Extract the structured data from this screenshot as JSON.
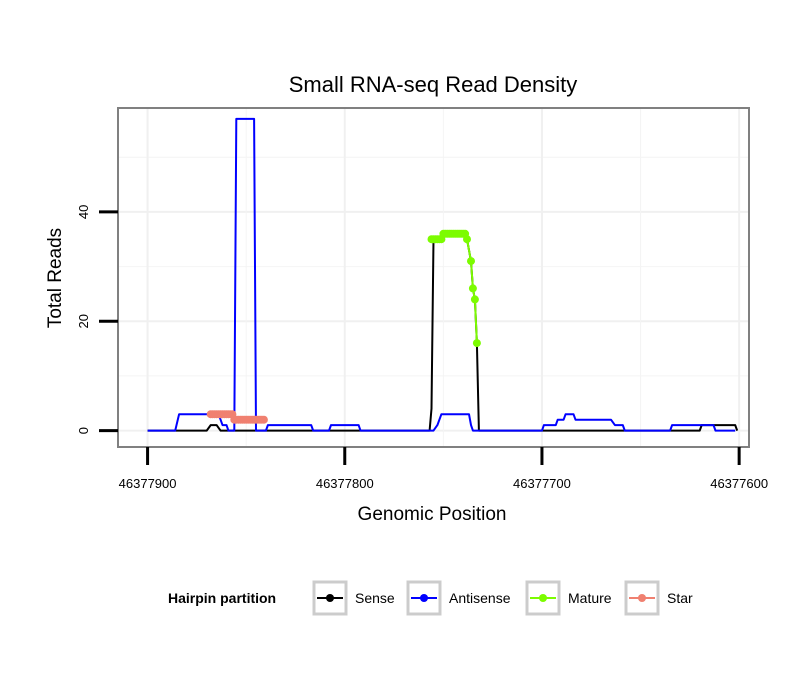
{
  "chart_data": {
    "type": "line",
    "title": "Small RNA-seq Read Density",
    "xlabel": "Genomic Position",
    "ylabel": "Total Reads",
    "xlim": [
      46377915,
      46377595
    ],
    "ylim": [
      -3,
      59
    ],
    "x_reversed": true,
    "x_ticks": [
      46377900,
      46377800,
      46377700,
      46377600
    ],
    "x_tick_labels": [
      "46377900",
      "46377800",
      "46377700",
      "46377600"
    ],
    "y_ticks": [
      0,
      20,
      40
    ],
    "y_tick_labels": [
      "0",
      "20",
      "40"
    ],
    "grid": true,
    "legend": {
      "title": "Hairpin partition",
      "position": "bottom",
      "entries": [
        "Sense",
        "Antisense",
        "Mature",
        "Star"
      ]
    },
    "series": [
      {
        "name": "Sense",
        "color": "#000000",
        "style": "line",
        "points": [
          [
            46377900,
            0
          ],
          [
            46377870,
            0
          ],
          [
            46377868,
            1
          ],
          [
            46377865,
            1
          ],
          [
            46377863,
            0
          ],
          [
            46377840,
            0
          ],
          [
            46377830,
            0
          ],
          [
            46377800,
            0
          ],
          [
            46377770,
            0
          ],
          [
            46377757,
            0
          ],
          [
            46377756,
            4
          ],
          [
            46377755,
            35
          ],
          [
            46377745,
            36
          ],
          [
            46377740,
            36
          ],
          [
            46377738,
            35
          ],
          [
            46377736,
            31
          ],
          [
            46377735,
            26
          ],
          [
            46377734,
            24
          ],
          [
            46377733,
            16
          ],
          [
            46377732,
            0
          ],
          [
            46377700,
            0
          ],
          [
            46377650,
            0
          ],
          [
            46377620,
            0
          ],
          [
            46377619,
            1
          ],
          [
            46377610,
            1
          ],
          [
            46377602,
            1
          ],
          [
            46377601,
            0
          ]
        ]
      },
      {
        "name": "Antisense",
        "color": "#0000ff",
        "style": "line",
        "points": [
          [
            46377900,
            0
          ],
          [
            46377886,
            0
          ],
          [
            46377884,
            3
          ],
          [
            46377864,
            3
          ],
          [
            46377862,
            1
          ],
          [
            46377860,
            1
          ],
          [
            46377859,
            0
          ],
          [
            46377856,
            0
          ],
          [
            46377855,
            57
          ],
          [
            46377846,
            57
          ],
          [
            46377845,
            0
          ],
          [
            46377840,
            0
          ],
          [
            46377839,
            1
          ],
          [
            46377817,
            1
          ],
          [
            46377816,
            0
          ],
          [
            46377808,
            0
          ],
          [
            46377807,
            1
          ],
          [
            46377793,
            1
          ],
          [
            46377792,
            0
          ],
          [
            46377755,
            0
          ],
          [
            46377753,
            1
          ],
          [
            46377751,
            3
          ],
          [
            46377737,
            3
          ],
          [
            46377736,
            1
          ],
          [
            46377735,
            0
          ],
          [
            46377700,
            0
          ],
          [
            46377699,
            1
          ],
          [
            46377693,
            1
          ],
          [
            46377692,
            2
          ],
          [
            46377689,
            2
          ],
          [
            46377688,
            3
          ],
          [
            46377684,
            3
          ],
          [
            46377683,
            2
          ],
          [
            46377665,
            2
          ],
          [
            46377663,
            1
          ],
          [
            46377659,
            1
          ],
          [
            46377658,
            0
          ],
          [
            46377635,
            0
          ],
          [
            46377634,
            1
          ],
          [
            46377613,
            1
          ],
          [
            46377612,
            0
          ],
          [
            46377602,
            0
          ]
        ]
      },
      {
        "name": "Mature",
        "color": "#7cfc00",
        "style": "line+points",
        "points": [
          [
            46377756,
            35
          ],
          [
            46377755,
            35
          ],
          [
            46377754,
            35
          ],
          [
            46377753,
            35
          ],
          [
            46377752,
            35
          ],
          [
            46377751,
            35
          ],
          [
            46377750,
            36
          ],
          [
            46377749,
            36
          ],
          [
            46377748,
            36
          ],
          [
            46377747,
            36
          ],
          [
            46377746,
            36
          ],
          [
            46377745,
            36
          ],
          [
            46377744,
            36
          ],
          [
            46377743,
            36
          ],
          [
            46377742,
            36
          ],
          [
            46377741,
            36
          ],
          [
            46377740,
            36
          ],
          [
            46377739,
            36
          ],
          [
            46377738,
            35
          ],
          [
            46377736,
            31
          ],
          [
            46377735,
            26
          ],
          [
            46377734,
            24
          ],
          [
            46377733,
            16
          ]
        ]
      },
      {
        "name": "Star",
        "color": "#f08070",
        "style": "line+points",
        "points": [
          [
            46377868,
            3
          ],
          [
            46377867,
            3
          ],
          [
            46377866,
            3
          ],
          [
            46377865,
            3
          ],
          [
            46377864,
            3
          ],
          [
            46377863,
            3
          ],
          [
            46377862,
            3
          ],
          [
            46377861,
            3
          ],
          [
            46377860,
            3
          ],
          [
            46377859,
            3
          ],
          [
            46377858,
            3
          ],
          [
            46377857,
            3
          ],
          [
            46377856,
            2
          ],
          [
            46377855,
            2
          ],
          [
            46377854,
            2
          ],
          [
            46377853,
            2
          ],
          [
            46377852,
            2
          ],
          [
            46377851,
            2
          ],
          [
            46377850,
            2
          ],
          [
            46377849,
            2
          ],
          [
            46377848,
            2
          ],
          [
            46377847,
            2
          ],
          [
            46377846,
            2
          ],
          [
            46377845,
            2
          ],
          [
            46377844,
            2
          ],
          [
            46377843,
            2
          ],
          [
            46377842,
            2
          ],
          [
            46377841,
            2
          ]
        ]
      }
    ]
  }
}
